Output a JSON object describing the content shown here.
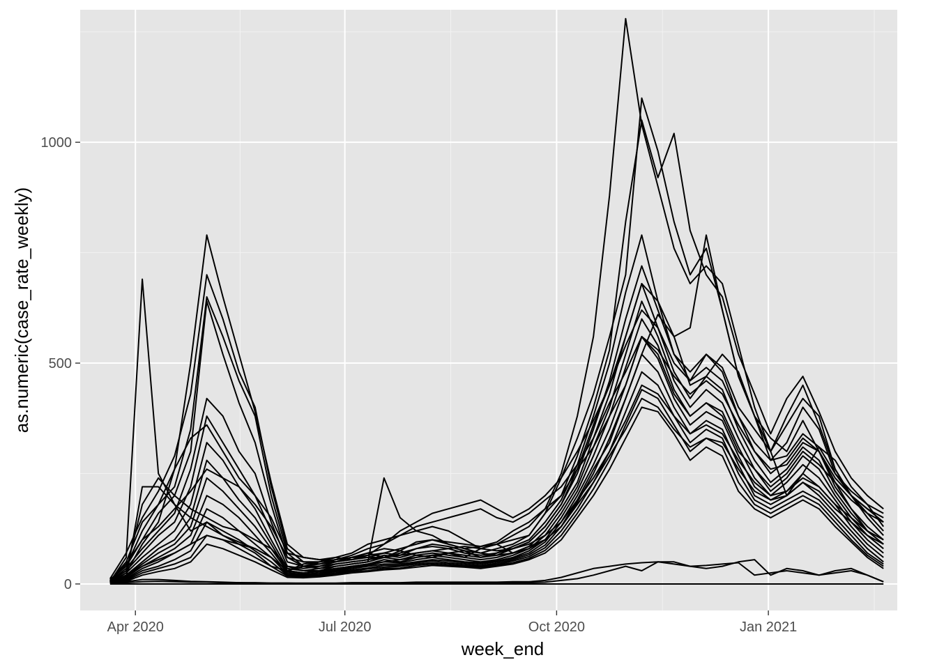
{
  "chart_data": {
    "type": "line",
    "title": "",
    "xlabel": "week_end",
    "ylabel": "as.numeric(case_rate_weekly)",
    "x_ticks": [
      "2020-04-01",
      "2020-07-01",
      "2020-10-01",
      "2021-01-01"
    ],
    "x_tick_labels": [
      "Apr 2020",
      "Jul 2020",
      "Oct 2020",
      "Jan 2021"
    ],
    "xlim": [
      "2020-03-08",
      "2021-02-26"
    ],
    "y_ticks": [
      0,
      500,
      1000
    ],
    "y_tick_labels": [
      "0",
      "500",
      "1000"
    ],
    "ylim": [
      -60,
      1300
    ],
    "grid": true,
    "legend": "none",
    "line_color": "#000000",
    "panel_color": "#e5e5e5",
    "dates": [
      "2020-03-21",
      "2020-03-28",
      "2020-04-04",
      "2020-04-11",
      "2020-04-18",
      "2020-04-25",
      "2020-05-02",
      "2020-05-09",
      "2020-05-16",
      "2020-05-23",
      "2020-05-30",
      "2020-06-06",
      "2020-06-13",
      "2020-06-20",
      "2020-06-27",
      "2020-07-04",
      "2020-07-11",
      "2020-07-18",
      "2020-07-25",
      "2020-08-01",
      "2020-08-08",
      "2020-08-15",
      "2020-08-22",
      "2020-08-29",
      "2020-09-05",
      "2020-09-12",
      "2020-09-19",
      "2020-09-26",
      "2020-10-03",
      "2020-10-10",
      "2020-10-17",
      "2020-10-24",
      "2020-10-31",
      "2020-11-07",
      "2020-11-14",
      "2020-11-21",
      "2020-11-28",
      "2020-12-05",
      "2020-12-12",
      "2020-12-19",
      "2020-12-26",
      "2021-01-02",
      "2021-01-09",
      "2021-01-16",
      "2021-01-23",
      "2021-01-30",
      "2021-02-06",
      "2021-02-13",
      "2021-02-20"
    ],
    "series_values": [
      [
        5,
        60,
        690,
        250,
        180,
        120,
        140,
        110,
        90,
        70,
        40,
        30,
        45,
        50,
        55,
        60,
        70,
        80,
        75,
        65,
        60,
        70,
        60,
        80,
        90,
        70,
        85,
        100,
        130,
        190,
        260,
        320,
        420,
        520,
        610,
        560,
        450,
        470,
        520,
        480,
        380,
        300,
        200,
        250,
        310,
        280,
        220,
        180,
        130
      ],
      [
        10,
        40,
        120,
        180,
        260,
        500,
        790,
        650,
        520,
        390,
        230,
        90,
        60,
        55,
        50,
        55,
        60,
        60,
        70,
        80,
        90,
        85,
        75,
        60,
        70,
        80,
        95,
        130,
        180,
        260,
        360,
        450,
        560,
        680,
        640,
        520,
        480,
        520,
        490,
        400,
        350,
        300,
        360,
        420,
        380,
        260,
        200,
        150,
        110
      ],
      [
        12,
        70,
        150,
        210,
        290,
        430,
        700,
        600,
        480,
        400,
        220,
        80,
        50,
        45,
        50,
        60,
        65,
        70,
        80,
        90,
        100,
        90,
        80,
        70,
        80,
        90,
        110,
        160,
        240,
        330,
        430,
        560,
        700,
        1100,
        980,
        820,
        700,
        760,
        620,
        470,
        380,
        330,
        300,
        370,
        300,
        230,
        170,
        120,
        90
      ],
      [
        8,
        50,
        140,
        180,
        220,
        350,
        650,
        560,
        460,
        380,
        200,
        70,
        40,
        50,
        60,
        55,
        65,
        90,
        110,
        120,
        130,
        120,
        100,
        80,
        90,
        110,
        130,
        170,
        250,
        380,
        560,
        880,
        1280,
        1040,
        900,
        760,
        680,
        720,
        680,
        540,
        400,
        300,
        380,
        450,
        360,
        260,
        200,
        160,
        120
      ],
      [
        6,
        45,
        100,
        160,
        200,
        300,
        640,
        520,
        410,
        320,
        180,
        60,
        40,
        45,
        55,
        60,
        70,
        60,
        75,
        95,
        100,
        95,
        90,
        85,
        90,
        100,
        110,
        160,
        200,
        290,
        400,
        530,
        820,
        1050,
        920,
        1020,
        800,
        700,
        650,
        520,
        430,
        340,
        420,
        470,
        390,
        300,
        240,
        200,
        170
      ],
      [
        7,
        35,
        80,
        120,
        160,
        260,
        420,
        380,
        300,
        250,
        140,
        50,
        40,
        40,
        50,
        60,
        60,
        70,
        65,
        80,
        85,
        80,
        70,
        65,
        70,
        85,
        100,
        140,
        190,
        270,
        380,
        500,
        660,
        790,
        640,
        560,
        580,
        790,
        620,
        470,
        380,
        280,
        320,
        400,
        350,
        250,
        200,
        170,
        140
      ],
      [
        5,
        30,
        70,
        110,
        140,
        220,
        380,
        320,
        260,
        200,
        120,
        40,
        30,
        35,
        45,
        50,
        55,
        65,
        60,
        70,
        75,
        70,
        65,
        60,
        65,
        80,
        95,
        130,
        180,
        250,
        350,
        460,
        600,
        720,
        620,
        520,
        460,
        520,
        480,
        380,
        300,
        250,
        280,
        330,
        300,
        220,
        170,
        130,
        100
      ],
      [
        4,
        25,
        60,
        90,
        120,
        180,
        320,
        280,
        220,
        170,
        100,
        35,
        30,
        30,
        40,
        45,
        50,
        60,
        55,
        65,
        70,
        65,
        60,
        55,
        60,
        70,
        85,
        120,
        170,
        230,
        330,
        430,
        560,
        680,
        580,
        480,
        420,
        470,
        440,
        350,
        280,
        230,
        260,
        310,
        280,
        210,
        160,
        120,
        90
      ],
      [
        3,
        20,
        50,
        80,
        100,
        150,
        280,
        240,
        190,
        150,
        90,
        30,
        25,
        30,
        35,
        40,
        45,
        55,
        50,
        60,
        65,
        60,
        55,
        50,
        55,
        65,
        80,
        110,
        160,
        220,
        310,
        400,
        520,
        640,
        560,
        460,
        400,
        440,
        410,
        330,
        260,
        210,
        240,
        290,
        260,
        200,
        150,
        110,
        80
      ],
      [
        3,
        18,
        45,
        70,
        90,
        130,
        240,
        210,
        170,
        130,
        80,
        28,
        25,
        28,
        32,
        38,
        42,
        50,
        48,
        55,
        60,
        55,
        50,
        48,
        52,
        60,
        75,
        100,
        150,
        210,
        290,
        380,
        490,
        600,
        540,
        440,
        380,
        410,
        390,
        310,
        240,
        200,
        230,
        270,
        240,
        190,
        140,
        100,
        70
      ],
      [
        2,
        15,
        40,
        60,
        80,
        110,
        200,
        180,
        150,
        110,
        70,
        25,
        22,
        25,
        30,
        35,
        40,
        45,
        45,
        50,
        55,
        52,
        48,
        45,
        50,
        58,
        70,
        95,
        140,
        200,
        270,
        350,
        450,
        560,
        510,
        420,
        360,
        390,
        370,
        290,
        220,
        190,
        210,
        250,
        220,
        180,
        130,
        90,
        60
      ],
      [
        2,
        12,
        35,
        50,
        70,
        90,
        170,
        150,
        120,
        90,
        60,
        22,
        20,
        22,
        28,
        32,
        36,
        42,
        42,
        48,
        52,
        48,
        45,
        42,
        47,
        55,
        66,
        88,
        130,
        185,
        250,
        330,
        420,
        520,
        480,
        400,
        340,
        370,
        350,
        270,
        200,
        180,
        200,
        230,
        200,
        160,
        120,
        80,
        50
      ],
      [
        2,
        10,
        30,
        40,
        55,
        75,
        140,
        120,
        100,
        75,
        50,
        20,
        18,
        20,
        25,
        30,
        34,
        38,
        40,
        45,
        48,
        45,
        42,
        40,
        44,
        52,
        62,
        82,
        120,
        170,
        230,
        300,
        390,
        480,
        450,
        380,
        320,
        350,
        330,
        250,
        190,
        170,
        190,
        210,
        190,
        150,
        110,
        70,
        45
      ],
      [
        1,
        8,
        25,
        35,
        45,
        60,
        110,
        100,
        80,
        60,
        40,
        18,
        16,
        18,
        22,
        28,
        30,
        35,
        36,
        42,
        45,
        42,
        40,
        38,
        42,
        48,
        58,
        76,
        110,
        160,
        215,
        280,
        360,
        440,
        420,
        360,
        300,
        330,
        310,
        230,
        180,
        160,
        180,
        200,
        180,
        140,
        100,
        65,
        40
      ],
      [
        1,
        6,
        20,
        28,
        35,
        50,
        90,
        80,
        65,
        50,
        32,
        15,
        14,
        16,
        20,
        25,
        28,
        32,
        34,
        38,
        42,
        40,
        38,
        35,
        40,
        45,
        55,
        70,
        100,
        150,
        200,
        260,
        330,
        400,
        390,
        340,
        280,
        310,
        290,
        210,
        170,
        150,
        170,
        190,
        170,
        130,
        95,
        60,
        35
      ],
      [
        2,
        14,
        220,
        220,
        180,
        150,
        130,
        110,
        95,
        80,
        60,
        30,
        40,
        35,
        40,
        45,
        50,
        240,
        150,
        120,
        110,
        90,
        80,
        85,
        95,
        120,
        140,
        170,
        200,
        260,
        310,
        380,
        450,
        560,
        520,
        430,
        380,
        410,
        380,
        300,
        260,
        220,
        250,
        300,
        270,
        230,
        190,
        160,
        140
      ],
      [
        3,
        25,
        90,
        140,
        260,
        330,
        360,
        300,
        240,
        200,
        150,
        70,
        60,
        55,
        60,
        70,
        90,
        100,
        110,
        130,
        140,
        150,
        160,
        170,
        150,
        140,
        160,
        190,
        220,
        270,
        330,
        410,
        480,
        560,
        530,
        470,
        430,
        460,
        430,
        360,
        300,
        260,
        270,
        320,
        300,
        240,
        200,
        170,
        150
      ],
      [
        10,
        40,
        100,
        130,
        170,
        210,
        260,
        240,
        220,
        180,
        130,
        60,
        50,
        50,
        55,
        65,
        80,
        90,
        120,
        140,
        160,
        170,
        180,
        190,
        170,
        150,
        170,
        200,
        240,
        300,
        370,
        450,
        540,
        620,
        580,
        500,
        460,
        490,
        460,
        380,
        320,
        280,
        290,
        340,
        310,
        250,
        210,
        180,
        160
      ],
      [
        4,
        20,
        40,
        55,
        70,
        90,
        110,
        100,
        90,
        80,
        60,
        30,
        25,
        30,
        35,
        40,
        45,
        50,
        55,
        60,
        65,
        70,
        75,
        70,
        65,
        70,
        80,
        100,
        130,
        180,
        230,
        290,
        350,
        420,
        400,
        350,
        310,
        330,
        320,
        260,
        210,
        190,
        200,
        230,
        210,
        170,
        140,
        110,
        90
      ],
      [
        8,
        30,
        180,
        240,
        200,
        170,
        150,
        130,
        120,
        100,
        80,
        40,
        35,
        40,
        45,
        50,
        55,
        60,
        65,
        70,
        75,
        80,
        85,
        80,
        75,
        80,
        90,
        110,
        140,
        190,
        240,
        300,
        370,
        450,
        430,
        380,
        340,
        360,
        340,
        280,
        230,
        200,
        210,
        240,
        220,
        180,
        150,
        120,
        100
      ],
      [
        0,
        0,
        0,
        0,
        0,
        0,
        0,
        0,
        0,
        0,
        0,
        0,
        0,
        0,
        0,
        0,
        0,
        0,
        0,
        0,
        0,
        0,
        0,
        0,
        0,
        0,
        0,
        0,
        0,
        0,
        0,
        0,
        0,
        0,
        0,
        0,
        0,
        0,
        0,
        0,
        0,
        0,
        0,
        0,
        0,
        0,
        0,
        0,
        0
      ],
      [
        2,
        5,
        10,
        10,
        8,
        6,
        5,
        4,
        3,
        3,
        2,
        2,
        2,
        2,
        2,
        3,
        3,
        3,
        3,
        4,
        4,
        4,
        4,
        4,
        4,
        5,
        5,
        8,
        15,
        25,
        35,
        40,
        45,
        48,
        50,
        45,
        40,
        42,
        45,
        48,
        20,
        25,
        30,
        25,
        20,
        25,
        30,
        20,
        5
      ],
      [
        1,
        3,
        5,
        6,
        5,
        4,
        4,
        3,
        3,
        2,
        2,
        2,
        1,
        1,
        1,
        2,
        2,
        2,
        2,
        2,
        2,
        3,
        3,
        3,
        3,
        3,
        3,
        4,
        8,
        12,
        20,
        30,
        40,
        30,
        50,
        50,
        40,
        35,
        40,
        50,
        55,
        20,
        35,
        30,
        20,
        30,
        35,
        20,
        5
      ]
    ]
  }
}
